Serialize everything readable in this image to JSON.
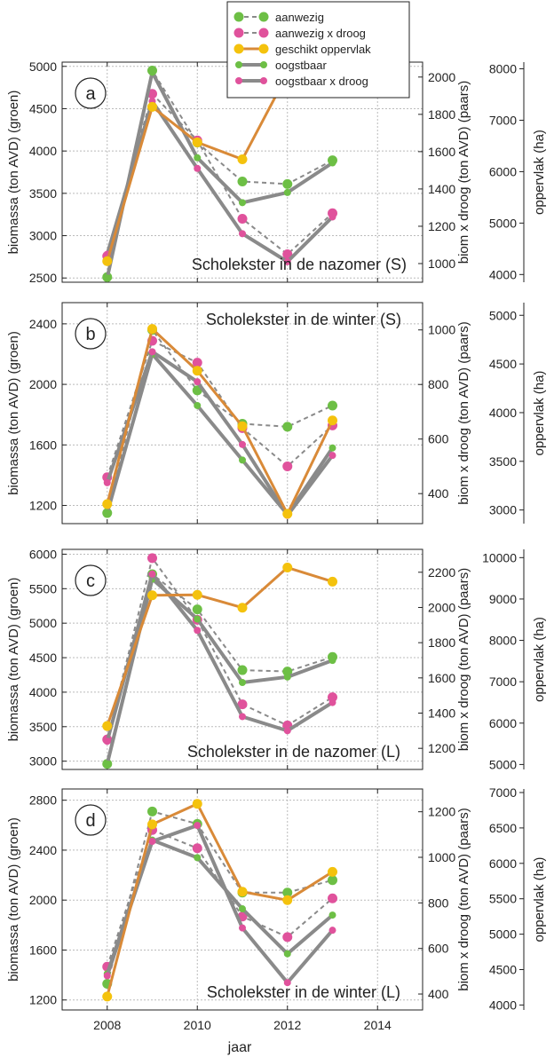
{
  "figure": {
    "xlabel": "jaar",
    "y1label": "biomassa (ton AVD) (groen)",
    "y2label": "biom x droog (ton AVD) (paars)",
    "y3label": "oppervlak (ha)"
  },
  "legend": {
    "placement": "top-center",
    "items": [
      {
        "label": "aanwezig",
        "color": "#6dbf45",
        "style": "dashed"
      },
      {
        "label": "aanwezig x droog",
        "color": "#e0529c",
        "style": "dashed"
      },
      {
        "label": "geschikt oppervlak",
        "color": "#d98a38",
        "style": "solid-orange"
      },
      {
        "label": "oogstbaar",
        "color": "#6dbf45",
        "style": "solid"
      },
      {
        "label": "oogstbaar x droog",
        "color": "#e0529c",
        "style": "solid"
      }
    ]
  },
  "colors": {
    "green": "#6dbf45",
    "pink": "#e0529c",
    "orange": "#d98a38",
    "line_gray": "#8a8a8a",
    "area_gold": "#f4c20d"
  },
  "chart_data": [
    {
      "type": "line",
      "panel": "a",
      "title": "Scholekster in de nazomer (S)",
      "x": [
        2008,
        2009,
        2010,
        2011,
        2012,
        2013
      ],
      "xlim": [
        2007,
        2015
      ],
      "ylim": [
        2450,
        5050
      ],
      "y2lim": [
        900,
        2080
      ],
      "y3lim": [
        3850,
        8130
      ],
      "yticks": [
        2500,
        3000,
        3500,
        4000,
        4500,
        5000
      ],
      "y2ticks": [
        1000,
        1200,
        1400,
        1600,
        1800,
        2000
      ],
      "y3ticks": [
        4000,
        5000,
        6000,
        7000,
        8000
      ],
      "series": [
        {
          "name": "aanwezig",
          "axis": "y",
          "values": [
            2510,
            4950,
            4100,
            3640,
            3610,
            3890
          ]
        },
        {
          "name": "aanwezig x droog",
          "axis": "y2",
          "values": [
            1040,
            1910,
            1660,
            1240,
            1050,
            1270
          ]
        },
        {
          "name": "geschikt oppervlak",
          "axis": "y3",
          "values": [
            4260,
            7260,
            6570,
            6240,
            7900,
            7900
          ]
        },
        {
          "name": "oogstbaar",
          "axis": "y",
          "values": [
            2500,
            4930,
            3920,
            3390,
            3510,
            3860
          ]
        },
        {
          "name": "oogstbaar x droog",
          "axis": "y2",
          "values": [
            1050,
            1870,
            1510,
            1160,
            1010,
            1250
          ]
        }
      ]
    },
    {
      "type": "line",
      "panel": "b",
      "title": "Scholekster in de winter (S)",
      "x": [
        2008,
        2009,
        2010,
        2011,
        2012,
        2013
      ],
      "xlim": [
        2007,
        2015
      ],
      "ylim": [
        1080,
        2540
      ],
      "y2lim": [
        290,
        1100
      ],
      "y3lim": [
        2860,
        5130
      ],
      "yticks": [
        1200,
        1600,
        2000,
        2400
      ],
      "y2ticks": [
        400,
        600,
        800,
        1000
      ],
      "y3ticks": [
        3000,
        3500,
        4000,
        4500,
        5000
      ],
      "series": [
        {
          "name": "aanwezig",
          "axis": "y",
          "values": [
            1150,
            2360,
            1960,
            1740,
            1720,
            1860
          ]
        },
        {
          "name": "aanwezig x droog",
          "axis": "y2",
          "values": [
            460,
            960,
            880,
            640,
            500,
            650
          ]
        },
        {
          "name": "geschikt oppervlak",
          "axis": "y3",
          "values": [
            3060,
            4860,
            4430,
            3860,
            2960,
            3920
          ]
        },
        {
          "name": "oogstbaar",
          "axis": "y",
          "values": [
            1150,
            2200,
            1860,
            1500,
            1140,
            1580
          ]
        },
        {
          "name": "oogstbaar x droog",
          "axis": "y2",
          "values": [
            440,
            920,
            810,
            580,
            320,
            540
          ]
        }
      ]
    },
    {
      "type": "line",
      "panel": "c",
      "title": "Scholekster in de nazomer (L)",
      "x": [
        2008,
        2009,
        2010,
        2011,
        2012,
        2013
      ],
      "xlim": [
        2007,
        2015
      ],
      "ylim": [
        2880,
        6070
      ],
      "y2lim": [
        1080,
        2330
      ],
      "y3lim": [
        4880,
        10200
      ],
      "yticks": [
        3000,
        3500,
        4000,
        4500,
        5000,
        5500,
        6000
      ],
      "y2ticks": [
        1200,
        1400,
        1600,
        1800,
        2000,
        2200
      ],
      "y3ticks": [
        5000,
        6000,
        7000,
        8000,
        9000,
        10000
      ],
      "series": [
        {
          "name": "aanwezig",
          "axis": "y",
          "values": [
            2960,
            5710,
            5200,
            4320,
            4300,
            4510
          ]
        },
        {
          "name": "aanwezig x droog",
          "axis": "y2",
          "values": [
            1250,
            2280,
            1930,
            1450,
            1330,
            1490
          ]
        },
        {
          "name": "geschikt oppervlak",
          "axis": "y3",
          "values": [
            5930,
            9090,
            9100,
            8790,
            9760,
            9420
          ]
        },
        {
          "name": "oogstbaar",
          "axis": "y",
          "values": [
            2960,
            5640,
            5060,
            4140,
            4220,
            4460
          ]
        },
        {
          "name": "oogstbaar x droog",
          "axis": "y2",
          "values": [
            1240,
            2190,
            1870,
            1380,
            1300,
            1460
          ]
        }
      ]
    },
    {
      "type": "line",
      "panel": "d",
      "title": "Scholekster in de winter (L)",
      "x": [
        2008,
        2009,
        2010,
        2011,
        2012,
        2013
      ],
      "xlim": [
        2007,
        2015
      ],
      "ylim": [
        1120,
        2890
      ],
      "y2lim": [
        330,
        1300
      ],
      "y3lim": [
        3930,
        7050
      ],
      "yticks": [
        1200,
        1600,
        2000,
        2400,
        2800
      ],
      "y2ticks": [
        400,
        600,
        800,
        1000,
        1200
      ],
      "y3ticks": [
        4000,
        4500,
        5000,
        5500,
        6000,
        6500,
        7000
      ],
      "series": [
        {
          "name": "aanwezig",
          "axis": "y",
          "values": [
            1330,
            2710,
            2610,
            2060,
            2060,
            2160
          ]
        },
        {
          "name": "aanwezig x droog",
          "axis": "y2",
          "values": [
            520,
            1120,
            1040,
            740,
            650,
            820
          ]
        },
        {
          "name": "geschikt oppervlak",
          "axis": "y3",
          "values": [
            4120,
            6550,
            6840,
            5600,
            5480,
            5880
          ]
        },
        {
          "name": "oogstbaar",
          "axis": "y",
          "values": [
            1410,
            2480,
            2340,
            1930,
            1570,
            1880
          ]
        },
        {
          "name": "oogstbaar x droog",
          "axis": "y2",
          "values": [
            480,
            1070,
            1140,
            690,
            450,
            680
          ]
        }
      ]
    }
  ]
}
